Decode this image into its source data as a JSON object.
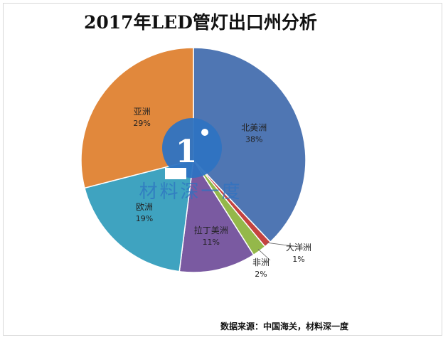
{
  "chart_data": {
    "type": "pie",
    "title": "2017年LED管灯出口州分析",
    "slices": [
      {
        "label": "北美洲",
        "value": 38,
        "value_label": "38%",
        "color": "#4f76b3"
      },
      {
        "label": "大洋洲",
        "value": 1,
        "value_label": "1%",
        "color": "#c5433f"
      },
      {
        "label": "非洲",
        "value": 2,
        "value_label": "2%",
        "color": "#94b84a"
      },
      {
        "label": "拉丁美洲",
        "value": 11,
        "value_label": "11%",
        "color": "#7a5aa1"
      },
      {
        "label": "欧洲",
        "value": 19,
        "value_label": "19%",
        "color": "#3fa3c0"
      },
      {
        "label": "亚洲",
        "value": 29,
        "value_label": "29%",
        "color": "#e1883c"
      }
    ],
    "start": "12 o'clock",
    "direction": "clockwise",
    "legend": "none",
    "source": "数据来源：中国海关，材料深一度"
  },
  "watermark": {
    "text": "材料深一度",
    "color": "#2e73c2"
  }
}
